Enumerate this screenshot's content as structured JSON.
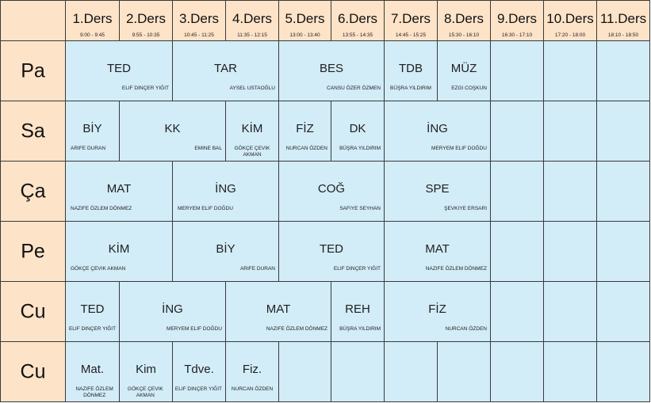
{
  "headers": [
    {
      "label": "1.Ders",
      "time": "9:00 - 9:45"
    },
    {
      "label": "2.Ders",
      "time": "9:55 - 10:35"
    },
    {
      "label": "3.Ders",
      "time": "10:45 - 11:25"
    },
    {
      "label": "4.Ders",
      "time": "11:35 - 12:15"
    },
    {
      "label": "5.Ders",
      "time": "13:00 - 13:40"
    },
    {
      "label": "6.Ders",
      "time": "13:55 - 14:35"
    },
    {
      "label": "7.Ders",
      "time": "14:45 - 15:25"
    },
    {
      "label": "8.Ders",
      "time": "15:30 - 16:10"
    },
    {
      "label": "9.Ders",
      "time": "16:30 - 17:10"
    },
    {
      "label": "10.Ders",
      "time": "17:20 - 18:00"
    },
    {
      "label": "11.Ders",
      "time": "18:10 - 18:50"
    }
  ],
  "days": [
    {
      "label": "Pa",
      "lessons": [
        {
          "subject": "TED",
          "teacher": "Elif Dinçer Yiğit",
          "start": 1,
          "span": 2
        },
        {
          "subject": "TAR",
          "teacher": "Aysel Ustaoğlu",
          "start": 3,
          "span": 2
        },
        {
          "subject": "BES",
          "teacher": "Cansu Özer Özmen",
          "start": 5,
          "span": 2
        },
        {
          "subject": "TDB",
          "teacher": "Büşra Yıldırım",
          "start": 7,
          "span": 1
        },
        {
          "subject": "MÜZ",
          "teacher": "Ezgi Coşkun",
          "start": 8,
          "span": 1
        }
      ]
    },
    {
      "label": "Sa",
      "lessons": [
        {
          "subject": "BİY",
          "teacher": "Arife Duran",
          "start": 1,
          "span": 1
        },
        {
          "subject": "KK",
          "teacher": "Emine Bal",
          "start": 2,
          "span": 2
        },
        {
          "subject": "KİM",
          "teacher": "Gökçe Çevik Akman",
          "start": 4,
          "span": 1
        },
        {
          "subject": "FİZ",
          "teacher": "Nurcan Özden",
          "start": 5,
          "span": 1
        },
        {
          "subject": "DK",
          "teacher": "Büşra Yıldırım",
          "start": 6,
          "span": 1
        },
        {
          "subject": "İNG",
          "teacher": "Meryem Elif Doğdu",
          "start": 7,
          "span": 2
        }
      ]
    },
    {
      "label": "Ça",
      "lessons": [
        {
          "subject": "MAT",
          "teacher": "Nazife Özlem Dönmez",
          "start": 1,
          "span": 2
        },
        {
          "subject": "İNG",
          "teacher": "Meryem Elif Doğdu",
          "start": 3,
          "span": 2
        },
        {
          "subject": "COĞ",
          "teacher": "Safiye Seyhan",
          "start": 5,
          "span": 2
        },
        {
          "subject": "SPE",
          "teacher": "Şevkiye Ersarı",
          "start": 7,
          "span": 2
        }
      ]
    },
    {
      "label": "Pe",
      "lessons": [
        {
          "subject": "KİM",
          "teacher": "Gökçe Çevik Akman",
          "start": 1,
          "span": 2
        },
        {
          "subject": "BİY",
          "teacher": "Arife Duran",
          "start": 3,
          "span": 2
        },
        {
          "subject": "TED",
          "teacher": "Elif Dinçer Yiğit",
          "start": 5,
          "span": 2
        },
        {
          "subject": "MAT",
          "teacher": "Nazife Özlem Dönmez",
          "start": 7,
          "span": 2
        }
      ]
    },
    {
      "label": "Cu",
      "lessons": [
        {
          "subject": "TED",
          "teacher": "Elif Dinçer Yiğit",
          "start": 1,
          "span": 1
        },
        {
          "subject": "İNG",
          "teacher": "Meryem Elif Doğdu",
          "start": 2,
          "span": 2
        },
        {
          "subject": "MAT",
          "teacher": "Nazife Özlem Dönmez",
          "start": 4,
          "span": 2
        },
        {
          "subject": "REH",
          "teacher": "Büşra Yıldırım",
          "start": 6,
          "span": 1
        },
        {
          "subject": "FİZ",
          "teacher": "Nurcan Özden",
          "start": 7,
          "span": 2
        }
      ]
    },
    {
      "label": "Cu",
      "lessons": [
        {
          "subject": "Mat.",
          "teacher": "Nazife Özlem Dönmez",
          "start": 1,
          "span": 1
        },
        {
          "subject": "Kim",
          "teacher": "Gökçe Çevik Akman",
          "start": 2,
          "span": 1
        },
        {
          "subject": "Tdve.",
          "teacher": "Elif Dinçer Yiğit",
          "start": 3,
          "span": 1
        },
        {
          "subject": "Fiz.",
          "teacher": "Nurcan Özden",
          "start": 4,
          "span": 1
        }
      ]
    }
  ]
}
